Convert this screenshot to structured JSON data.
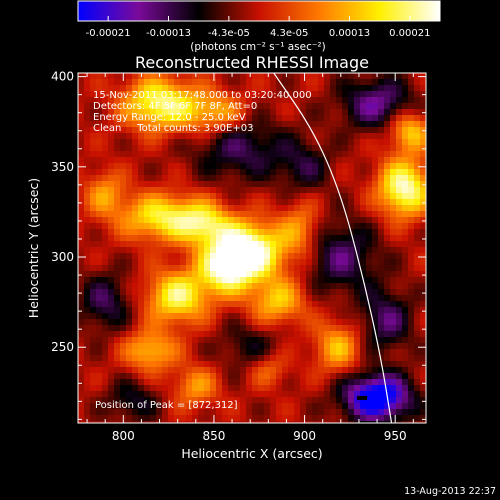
{
  "chart_data": {
    "type": "heatmap",
    "title": "Reconstructed RHESSI Image",
    "xlabel": "Heliocentric X (arcsec)",
    "ylabel": "Heliocentric Y (arcsec)",
    "xlim": [
      775,
      967
    ],
    "ylim": [
      208,
      402
    ],
    "x_ticks": [
      "800",
      "850",
      "900",
      "950"
    ],
    "x_tick_values": [
      800,
      850,
      900,
      950
    ],
    "y_ticks": [
      "250",
      "300",
      "350",
      "400"
    ],
    "y_tick_values": [
      250,
      300,
      350,
      400
    ],
    "annotation_lines": [
      "15-Nov-2011 03:17:48.000 to 03:20:40.000",
      "Detectors: 4F 5F 6F 7F 8F, Att=0",
      "Energy Range: 12.0 - 25.0 keV",
      "Clean     Total counts: 3.90E+03"
    ],
    "peak_label": "Position of Peak = [872,312]",
    "peak": {
      "x": 872,
      "y": 312
    },
    "colorbar": {
      "tick_labels": [
        "-0.00021",
        "-0.00013",
        "-4.3e-05",
        "4.3e-05",
        "0.00013",
        "0.00021"
      ],
      "unit_label": "(photons cm⁻² s⁻¹ asec⁻²)",
      "min": -0.00021,
      "max": 0.00021
    },
    "colormap": [
      "#0000ff",
      "#7a0a9a",
      "#000000",
      "#c81000",
      "#ff7a00",
      "#fff000",
      "#ffffff"
    ],
    "limb_curve": [
      {
        "x": 883,
        "y": 402
      },
      {
        "x": 905,
        "y": 370
      },
      {
        "x": 920,
        "y": 335
      },
      {
        "x": 932,
        "y": 290
      },
      {
        "x": 942,
        "y": 245
      },
      {
        "x": 948,
        "y": 208
      }
    ],
    "sources": [
      {
        "x": 868,
        "y": 303,
        "level": 1.25,
        "sx": 14,
        "sy": 11
      },
      {
        "x": 856,
        "y": 292,
        "level": 0.7,
        "sx": 10,
        "sy": 9
      },
      {
        "x": 822,
        "y": 322,
        "level": 0.8,
        "sx": 16,
        "sy": 9
      },
      {
        "x": 845,
        "y": 318,
        "level": 0.6,
        "sx": 10,
        "sy": 8
      },
      {
        "x": 830,
        "y": 278,
        "level": 0.85,
        "sx": 12,
        "sy": 10
      },
      {
        "x": 885,
        "y": 275,
        "level": 0.6,
        "sx": 11,
        "sy": 9
      },
      {
        "x": 815,
        "y": 248,
        "level": 0.6,
        "sx": 10,
        "sy": 8
      },
      {
        "x": 820,
        "y": 385,
        "level": 0.9,
        "sx": 14,
        "sy": 10
      },
      {
        "x": 850,
        "y": 380,
        "level": 0.55,
        "sx": 12,
        "sy": 8
      },
      {
        "x": 790,
        "y": 335,
        "level": 0.45,
        "sx": 8,
        "sy": 9
      },
      {
        "x": 898,
        "y": 315,
        "level": 0.45,
        "sx": 8,
        "sy": 11
      },
      {
        "x": 955,
        "y": 338,
        "level": 1.0,
        "sx": 10,
        "sy": 11
      },
      {
        "x": 958,
        "y": 370,
        "level": 0.65,
        "sx": 8,
        "sy": 8
      },
      {
        "x": 918,
        "y": 250,
        "level": 0.55,
        "sx": 9,
        "sy": 10
      },
      {
        "x": 840,
        "y": 228,
        "level": 0.45,
        "sx": 9,
        "sy": 8
      },
      {
        "x": 880,
        "y": 238,
        "level": 0.35,
        "sx": 8,
        "sy": 7
      },
      {
        "x": 865,
        "y": 360,
        "level": -0.45,
        "sx": 18,
        "sy": 12
      },
      {
        "x": 940,
        "y": 385,
        "level": -0.6,
        "sx": 14,
        "sy": 10
      },
      {
        "x": 920,
        "y": 300,
        "level": -0.5,
        "sx": 14,
        "sy": 14
      },
      {
        "x": 940,
        "y": 222,
        "level": -1.15,
        "sx": 13,
        "sy": 9
      },
      {
        "x": 945,
        "y": 265,
        "level": -0.5,
        "sx": 10,
        "sy": 12
      },
      {
        "x": 790,
        "y": 275,
        "level": -0.45,
        "sx": 10,
        "sy": 11
      },
      {
        "x": 900,
        "y": 350,
        "level": -0.35,
        "sx": 10,
        "sy": 10
      },
      {
        "x": 870,
        "y": 250,
        "level": -0.3,
        "sx": 12,
        "sy": 10
      },
      {
        "x": 805,
        "y": 220,
        "level": -0.35,
        "sx": 10,
        "sy": 8
      }
    ]
  },
  "timestamp": "13-Aug-2013 22:37"
}
